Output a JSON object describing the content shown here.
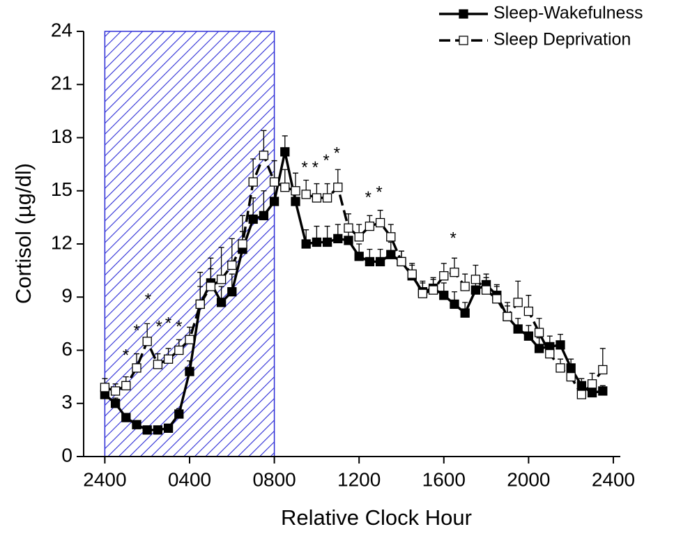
{
  "chart_data": {
    "type": "line",
    "x_label": "Relative Clock Hour",
    "y_label": "Cortisol (µg/dl)",
    "xlim": [
      -1,
      24.33
    ],
    "ylim": [
      0,
      24
    ],
    "xticks": [
      {
        "value": 0,
        "label": "2400"
      },
      {
        "value": 4,
        "label": "0400"
      },
      {
        "value": 8,
        "label": "0800"
      },
      {
        "value": 12,
        "label": "1200"
      },
      {
        "value": 16,
        "label": "1600"
      },
      {
        "value": 20,
        "label": "2000"
      },
      {
        "value": 24,
        "label": "2400"
      }
    ],
    "yticks": [
      0,
      3,
      6,
      9,
      12,
      15,
      18,
      21,
      24
    ],
    "shaded_region": [
      0,
      8
    ],
    "shade_color": "#2b2bd6",
    "legend": "top-right",
    "x": [
      0,
      0.5,
      1,
      1.5,
      2,
      2.5,
      3,
      3.5,
      4,
      4.5,
      5,
      5.5,
      6,
      6.5,
      7,
      7.5,
      8,
      8.5,
      9,
      9.5,
      10,
      10.5,
      11,
      11.5,
      12,
      12.5,
      13,
      13.5,
      14,
      14.5,
      15,
      15.5,
      16,
      16.5,
      17,
      17.5,
      18,
      18.5,
      19,
      19.5,
      20,
      20.5,
      21,
      21.5,
      22,
      22.5,
      23,
      23.5
    ],
    "series": [
      {
        "name": "Sleep-Wakefulness",
        "color": "#000000",
        "marker": "filled",
        "dash": false,
        "values": [
          3.5,
          3.0,
          2.2,
          1.8,
          1.5,
          1.5,
          1.6,
          2.4,
          4.8,
          8.6,
          9.8,
          8.7,
          9.3,
          11.7,
          13.4,
          13.6,
          14.4,
          17.2,
          14.4,
          12.0,
          12.1,
          12.1,
          12.3,
          12.2,
          11.3,
          11.0,
          11.0,
          11.4,
          11.0,
          10.2,
          9.3,
          9.5,
          9.1,
          8.6,
          8.1,
          9.4,
          9.7,
          9.1,
          7.9,
          7.2,
          6.8,
          6.1,
          6.2,
          6.3,
          5.0,
          4.0,
          3.6,
          3.7
        ],
        "errors": [
          0.3,
          0.3,
          0.2,
          0.2,
          0.2,
          0.2,
          0.2,
          0.3,
          0.6,
          1.0,
          0.8,
          0.9,
          1.0,
          1.0,
          1.2,
          1.4,
          1.3,
          0.9,
          0.8,
          0.8,
          0.9,
          0.9,
          0.8,
          0.8,
          0.7,
          0.7,
          0.7,
          0.7,
          0.6,
          0.6,
          0.6,
          0.6,
          0.7,
          0.7,
          0.6,
          0.6,
          0.6,
          0.6,
          0.6,
          0.6,
          0.6,
          0.6,
          0.6,
          0.6,
          0.5,
          0.4,
          0.3,
          0.3
        ]
      },
      {
        "name": "Sleep Deprivation",
        "color": "#000000",
        "marker": "open",
        "dash": true,
        "values": [
          3.9,
          3.7,
          4.0,
          5.0,
          6.5,
          5.2,
          5.5,
          6.0,
          6.6,
          8.6,
          9.6,
          10.0,
          10.8,
          12.0,
          15.5,
          17.0,
          15.5,
          15.2,
          15.0,
          14.8,
          14.6,
          14.6,
          15.2,
          12.9,
          12.4,
          13.0,
          13.2,
          12.4,
          11.0,
          10.3,
          9.2,
          9.4,
          10.2,
          10.4,
          9.6,
          10.0,
          9.4,
          8.9,
          7.9,
          8.7,
          8.2,
          7.0,
          5.8,
          5.0,
          4.5,
          3.5,
          4.1,
          4.9
        ],
        "errors": [
          0.5,
          0.4,
          0.5,
          0.8,
          1.0,
          0.6,
          0.6,
          0.6,
          0.7,
          1.8,
          1.6,
          1.8,
          1.5,
          1.6,
          1.3,
          1.4,
          1.2,
          1.0,
          1.0,
          0.8,
          0.8,
          0.8,
          1.0,
          0.8,
          0.7,
          0.6,
          0.7,
          0.7,
          0.6,
          0.6,
          0.6,
          0.6,
          0.7,
          0.8,
          0.7,
          0.8,
          0.7,
          0.7,
          0.8,
          1.2,
          0.9,
          0.8,
          0.6,
          0.5,
          0.4,
          0.4,
          0.6,
          1.2
        ]
      }
    ],
    "annotations": [
      {
        "text": "*",
        "x": 0.99,
        "y": 5.9
      },
      {
        "text": "*",
        "x": 1.5,
        "y": 7.3
      },
      {
        "text": "*",
        "x": 2.04,
        "y": 9.05
      },
      {
        "text": "*",
        "x": 2.56,
        "y": 7.5
      },
      {
        "text": "*",
        "x": 3.0,
        "y": 7.7
      },
      {
        "text": "*",
        "x": 3.5,
        "y": 7.5
      },
      {
        "text": "*",
        "x": 9.43,
        "y": 16.5
      },
      {
        "text": "*",
        "x": 9.93,
        "y": 16.5
      },
      {
        "text": "*",
        "x": 10.45,
        "y": 16.9
      },
      {
        "text": "*",
        "x": 10.95,
        "y": 17.3
      },
      {
        "text": "*",
        "x": 12.43,
        "y": 14.8
      },
      {
        "text": "*",
        "x": 12.95,
        "y": 15.1
      },
      {
        "text": "*",
        "x": 16.44,
        "y": 12.5
      }
    ]
  }
}
